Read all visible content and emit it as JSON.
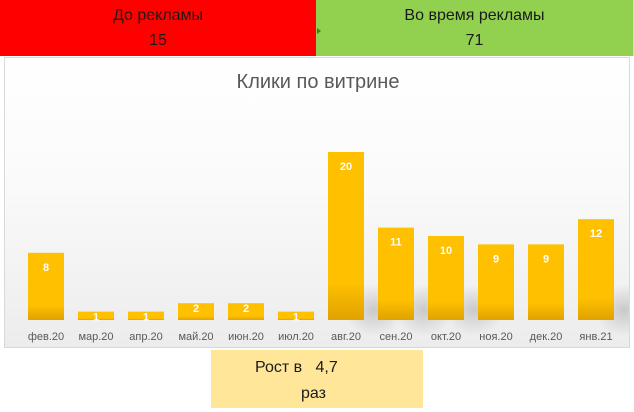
{
  "header": {
    "before": {
      "label": "До рекламы",
      "value": "15",
      "color": "#ff0000"
    },
    "during": {
      "label": "Во время рекламы",
      "value": "71",
      "color": "#92d050"
    }
  },
  "growth": {
    "prefix": "Рост в",
    "value": "4,7",
    "suffix": "раз",
    "color": "#ffe699"
  },
  "chart_data": {
    "type": "bar",
    "title": "Клики по витрине",
    "xlabel": "",
    "ylabel": "",
    "categories": [
      "фев.20",
      "мар.20",
      "апр.20",
      "май.20",
      "июн.20",
      "июл.20",
      "авг.20",
      "сен.20",
      "окт.20",
      "ноя.20",
      "дек.20",
      "янв.21"
    ],
    "values": [
      8,
      1,
      1,
      2,
      2,
      1,
      20,
      11,
      10,
      9,
      9,
      12
    ],
    "ylim": [
      0,
      20
    ],
    "grid": false,
    "legend": "none",
    "data_labels": true,
    "bar_color": "#ffc000",
    "bar_color_dark": "#e0a200"
  }
}
